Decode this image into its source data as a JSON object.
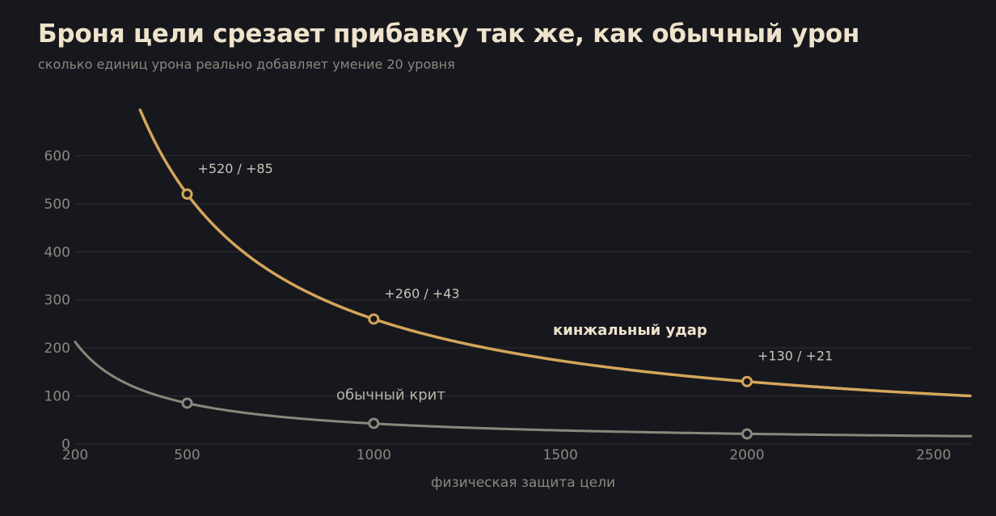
{
  "header": {
    "title": "Броня цели срезает прибавку так же, как обычный урон",
    "subtitle": "сколько единиц урона реально добавляет умение 20 уровня"
  },
  "chart_data": {
    "type": "line",
    "title": "Броня цели срезает прибавку так же, как обычный урон",
    "subtitle": "сколько единиц урона реально добавляет умение 20 уровня",
    "xlabel": "физическая защита цели",
    "ylabel": "",
    "xlim": [
      200,
      2600
    ],
    "ylim": [
      0,
      700
    ],
    "xticks": [
      200,
      500,
      1000,
      1500,
      2000,
      2500
    ],
    "yticks": [
      0,
      100,
      200,
      300,
      400,
      500,
      600
    ],
    "grid": true,
    "series": [
      {
        "name": "кинжальный удар",
        "color": "#d4a65a",
        "formula_k": 260000,
        "x_start": 370,
        "points": [
          {
            "x": 500,
            "y": 520
          },
          {
            "x": 1000,
            "y": 260
          },
          {
            "x": 2000,
            "y": 130
          }
        ]
      },
      {
        "name": "обычный крит",
        "color": "#8a887d",
        "formula_k": 42500,
        "x_start": 200,
        "points": [
          {
            "x": 500,
            "y": 85
          },
          {
            "x": 1000,
            "y": 43
          },
          {
            "x": 2000,
            "y": 21
          }
        ]
      }
    ],
    "annotations": [
      {
        "x": 500,
        "text": "+520 / +85"
      },
      {
        "x": 1000,
        "text": "+260 / +43"
      },
      {
        "x": 2000,
        "text": "+130 / +21"
      }
    ]
  }
}
